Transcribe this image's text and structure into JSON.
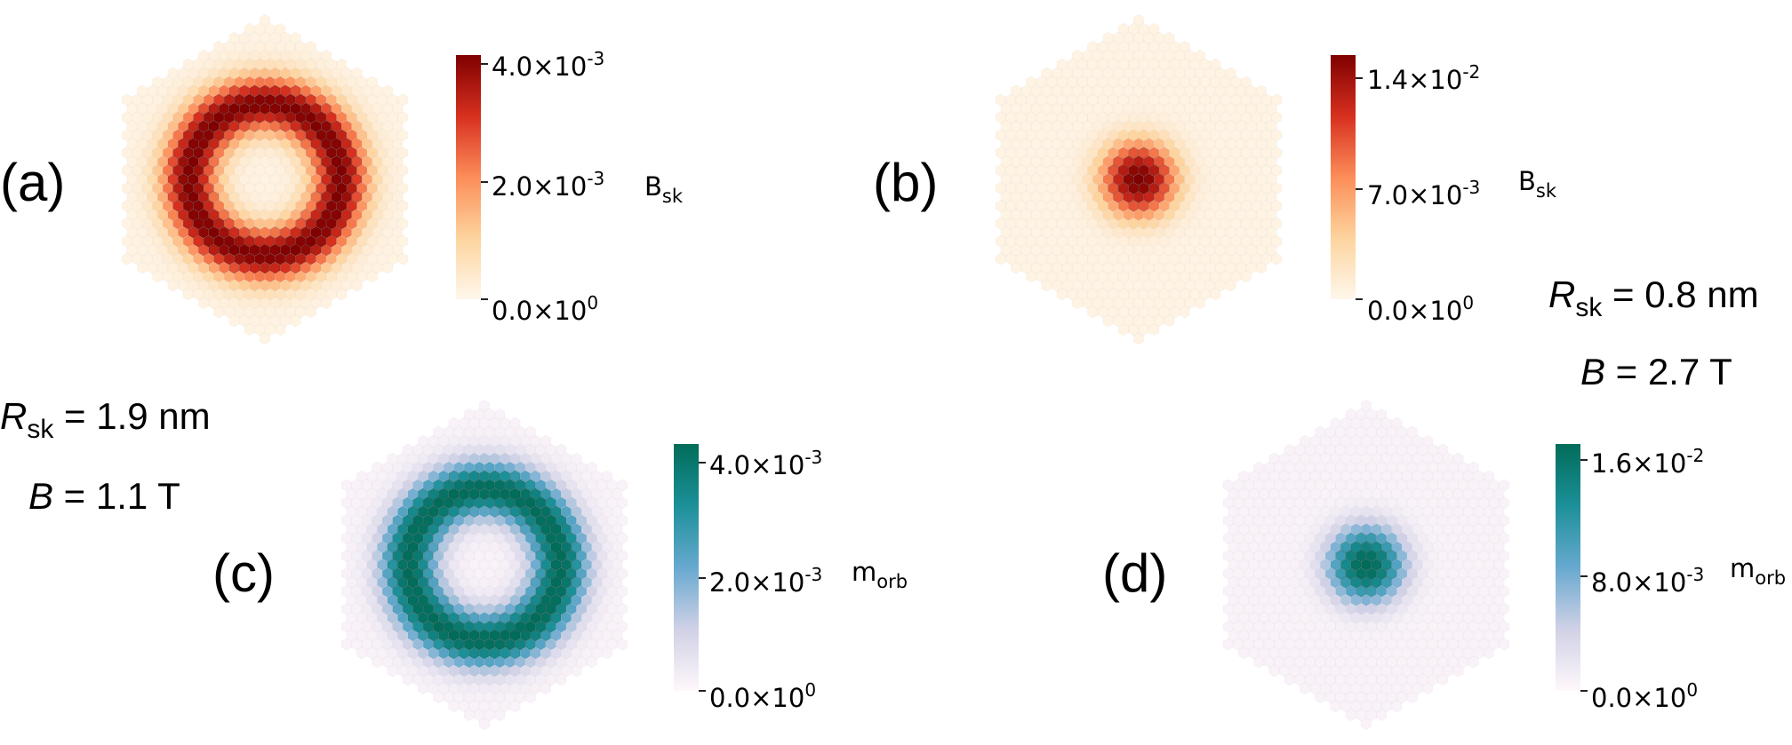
{
  "panels": [
    {
      "id": "a",
      "label": "(a)",
      "quantity_label": "B",
      "quantity_sub": "sk",
      "colormap": "OrRd",
      "colors": [
        "#fff7ec",
        "#fdd49e",
        "#fc8d59",
        "#d7301f",
        "#7f0000"
      ],
      "ticks": [
        {
          "mantissa": "4.0×10",
          "exp": "-3",
          "value": 0.004
        },
        {
          "mantissa": "2.0×10",
          "exp": "-3",
          "value": 0.002
        },
        {
          "mantissa": "0.0×10",
          "exp": "0",
          "value": 0.0
        }
      ],
      "vmax": 0.004,
      "pattern": "ring"
    },
    {
      "id": "b",
      "label": "(b)",
      "quantity_label": "B",
      "quantity_sub": "sk",
      "colormap": "OrRd",
      "colors": [
        "#fff7ec",
        "#fdd49e",
        "#fc8d59",
        "#d7301f",
        "#7f0000"
      ],
      "ticks": [
        {
          "mantissa": "1.4×10",
          "exp": "-2",
          "value": 0.014
        },
        {
          "mantissa": "7.0×10",
          "exp": "-3",
          "value": 0.007
        },
        {
          "mantissa": "0.0×10",
          "exp": "0",
          "value": 0.0
        }
      ],
      "vmax": 0.014,
      "pattern": "disk"
    },
    {
      "id": "c",
      "label": "(c)",
      "quantity_label": "m",
      "quantity_sub": "orb",
      "colormap": "PuBuGn",
      "colors": [
        "#fff7fb",
        "#d0d1e6",
        "#67a9cf",
        "#1c9099",
        "#016c59"
      ],
      "ticks": [
        {
          "mantissa": "4.0×10",
          "exp": "-3",
          "value": 0.004
        },
        {
          "mantissa": "2.0×10",
          "exp": "-3",
          "value": 0.002
        },
        {
          "mantissa": "0.0×10",
          "exp": "0",
          "value": 0.0
        }
      ],
      "vmax": 0.004,
      "pattern": "ring"
    },
    {
      "id": "d",
      "label": "(d)",
      "quantity_label": "m",
      "quantity_sub": "orb",
      "colormap": "PuBuGn",
      "colors": [
        "#fff7fb",
        "#d0d1e6",
        "#67a9cf",
        "#1c9099",
        "#016c59"
      ],
      "ticks": [
        {
          "mantissa": "1.6×10",
          "exp": "-2",
          "value": 0.016
        },
        {
          "mantissa": "8.0×10",
          "exp": "-3",
          "value": 0.008
        },
        {
          "mantissa": "0.0×10",
          "exp": "0",
          "value": 0.0
        }
      ],
      "vmax": 0.016,
      "pattern": "disk"
    }
  ],
  "annotations": {
    "left": {
      "r_symbol": "R",
      "r_sub": "sk",
      "r_value": " = 1.9 nm",
      "b_symbol": "B",
      "b_value": " = 1.1 T"
    },
    "right": {
      "r_symbol": "R",
      "r_sub": "sk",
      "r_value": " = 0.8 nm",
      "b_symbol": "B",
      "b_value": " = 2.7 T"
    }
  },
  "chart_data": [
    {
      "type": "heatmap",
      "panel": "(a)",
      "colorbar_label": "Bsk",
      "colorbar_range": [
        0.0,
        0.004
      ],
      "colorbar_ticks": [
        0.0,
        0.002,
        0.004
      ],
      "shape": "ring"
    },
    {
      "type": "heatmap",
      "panel": "(b)",
      "colorbar_label": "Bsk",
      "colorbar_range": [
        0.0,
        0.014
      ],
      "colorbar_ticks": [
        0.0,
        0.007,
        0.014
      ],
      "shape": "disk"
    },
    {
      "type": "heatmap",
      "panel": "(c)",
      "colorbar_label": "morb",
      "colorbar_range": [
        0.0,
        0.004
      ],
      "colorbar_ticks": [
        0.0,
        0.002,
        0.004
      ],
      "shape": "ring"
    },
    {
      "type": "heatmap",
      "panel": "(d)",
      "colorbar_label": "morb",
      "colorbar_range": [
        0.0,
        0.016
      ],
      "colorbar_ticks": [
        0.0,
        0.008,
        0.016
      ],
      "shape": "disk"
    }
  ]
}
